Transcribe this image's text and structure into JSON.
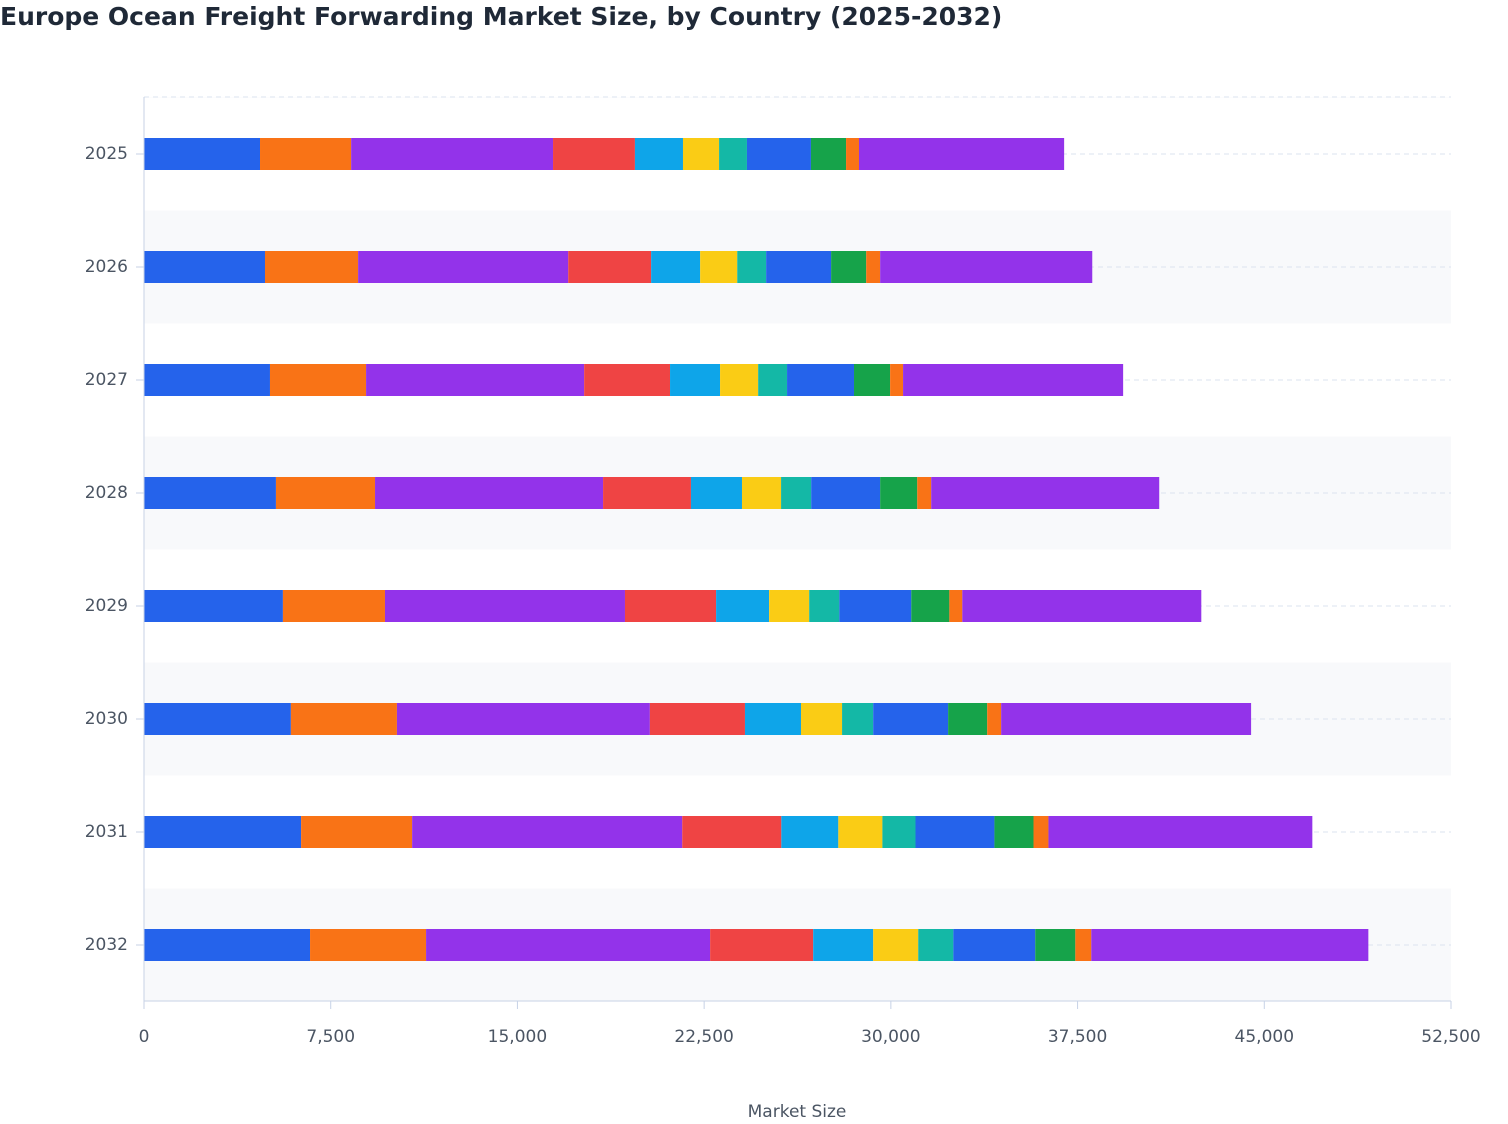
{
  "chart_data": {
    "type": "stacked-barh",
    "title": "Europe Ocean Freight Forwarding Market Size, by Country (2025-2032)",
    "x_label": "Market Size",
    "categories": [
      "2025",
      "2026",
      "2027",
      "2028",
      "2029",
      "2030",
      "2031",
      "2032"
    ],
    "series": [
      {
        "color": "#2563eb",
        "values": [
          4660,
          4860,
          5060,
          5300,
          5580,
          5900,
          6310,
          6670
        ]
      },
      {
        "color": "#f97316",
        "values": [
          3660,
          3740,
          3860,
          3980,
          4100,
          4260,
          4460,
          4660
        ]
      },
      {
        "color": "#9333ea",
        "values": [
          8110,
          8440,
          8760,
          9160,
          9640,
          10160,
          10850,
          11410
        ]
      },
      {
        "color": "#ef4444",
        "values": [
          3290,
          3330,
          3450,
          3530,
          3660,
          3820,
          3980,
          4140
        ]
      },
      {
        "color": "#0ea5e9",
        "values": [
          1930,
          1970,
          2010,
          2050,
          2130,
          2250,
          2290,
          2410
        ]
      },
      {
        "color": "#facc15",
        "values": [
          1450,
          1490,
          1530,
          1570,
          1610,
          1650,
          1770,
          1810
        ]
      },
      {
        "color": "#14b8a6",
        "values": [
          1120,
          1160,
          1160,
          1210,
          1210,
          1250,
          1330,
          1410
        ]
      },
      {
        "color": "#2563eb",
        "values": [
          2570,
          2610,
          2690,
          2770,
          2890,
          3010,
          3170,
          3290
        ]
      },
      {
        "color": "#16a34a",
        "values": [
          1410,
          1410,
          1450,
          1490,
          1530,
          1570,
          1570,
          1610
        ]
      },
      {
        "color": "#f97316",
        "values": [
          520,
          560,
          520,
          560,
          520,
          560,
          600,
          640
        ]
      },
      {
        "color": "#9333ea",
        "values": [
          8240,
          8520,
          8840,
          9160,
          9600,
          10040,
          10600,
          11130
        ]
      }
    ],
    "xlim": [
      0,
      52500
    ],
    "xticks": [
      0,
      {
        "value": 7500,
        "label": "7,500"
      },
      {
        "value": 15000,
        "label": "15,000"
      },
      {
        "value": 22500,
        "label": "22,500"
      },
      {
        "value": 30000,
        "label": "30,000"
      },
      {
        "value": 37500,
        "label": "37,500"
      },
      {
        "value": 45000,
        "label": "45,000"
      },
      {
        "value": 52500,
        "label": "52,500"
      }
    ],
    "grid": true
  }
}
